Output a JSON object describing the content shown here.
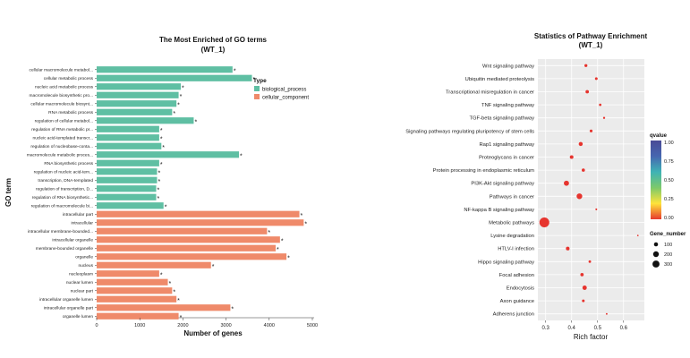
{
  "colors": {
    "biological_process": "#5fbfa3",
    "cellular_component": "#ef8a6a",
    "dot": "#e6342e",
    "panel_bg": "#ebebeb",
    "grid": "#ffffff",
    "qvalue_gradient": [
      "#e63a2e",
      "#ffe33a",
      "#7dc96a",
      "#3fb3b5",
      "#4666b0",
      "#4a4a96"
    ]
  },
  "chart_data": [
    {
      "type": "bar",
      "orientation": "horizontal",
      "title": "The Most Enriched of GO terms",
      "subtitle": "(WT_1)",
      "xlabel": "Number of genes",
      "ylabel": "GO term",
      "xlim": [
        0,
        5000
      ],
      "xticks": [
        "0",
        "1000",
        "2000",
        "3000",
        "4000",
        "5000"
      ],
      "legend": {
        "title": "Type",
        "position": "right",
        "entries": [
          {
            "label": "biological_process",
            "color_key": "biological_process"
          },
          {
            "label": "cellular_component",
            "color_key": "cellular_component"
          }
        ]
      },
      "star": "*",
      "bars": [
        {
          "label": "cellular macromolecule metabol...",
          "value": 3150,
          "type": "biological_process"
        },
        {
          "label": "cellular metabolic process",
          "value": 3600,
          "type": "biological_process"
        },
        {
          "label": "nucleic acid metabolic process",
          "value": 1950,
          "type": "biological_process"
        },
        {
          "label": "macromolecule biosynthetic pro...",
          "value": 1900,
          "type": "biological_process"
        },
        {
          "label": "cellular macromolecule biosynt...",
          "value": 1850,
          "type": "biological_process"
        },
        {
          "label": "RNA metabolic process",
          "value": 1750,
          "type": "biological_process"
        },
        {
          "label": "regulation of cellular metabol...",
          "value": 2250,
          "type": "biological_process"
        },
        {
          "label": "regulation of RNA metabolic pr...",
          "value": 1450,
          "type": "biological_process"
        },
        {
          "label": "nucleic acid-templated transcr...",
          "value": 1450,
          "type": "biological_process"
        },
        {
          "label": "regulation of nucleobase-conta...",
          "value": 1500,
          "type": "biological_process"
        },
        {
          "label": "macromolecule metabolic proces...",
          "value": 3300,
          "type": "biological_process"
        },
        {
          "label": "RNA biosynthetic process",
          "value": 1450,
          "type": "biological_process"
        },
        {
          "label": "regulation of nucleic acid-tem...",
          "value": 1400,
          "type": "biological_process"
        },
        {
          "label": "transcription, DNA-templated",
          "value": 1400,
          "type": "biological_process"
        },
        {
          "label": "regulation of transcription, D...",
          "value": 1380,
          "type": "biological_process"
        },
        {
          "label": "regulation of RNA biosynthetic...",
          "value": 1380,
          "type": "biological_process"
        },
        {
          "label": "regulation of macromolecule bi...",
          "value": 1550,
          "type": "biological_process"
        },
        {
          "label": "intracellular part",
          "value": 4700,
          "type": "cellular_component"
        },
        {
          "label": "intracellular",
          "value": 4800,
          "type": "cellular_component"
        },
        {
          "label": "intracellular membrane-bounded...",
          "value": 3950,
          "type": "cellular_component"
        },
        {
          "label": "intracellular organelle",
          "value": 4250,
          "type": "cellular_component"
        },
        {
          "label": "membrane-bounded organelle",
          "value": 4150,
          "type": "cellular_component"
        },
        {
          "label": "organelle",
          "value": 4400,
          "type": "cellular_component"
        },
        {
          "label": "nucleus",
          "value": 2650,
          "type": "cellular_component"
        },
        {
          "label": "nucleoplasm",
          "value": 1450,
          "type": "cellular_component"
        },
        {
          "label": "nuclear lumen",
          "value": 1650,
          "type": "cellular_component"
        },
        {
          "label": "nuclear part",
          "value": 1750,
          "type": "cellular_component"
        },
        {
          "label": "intracellular organelle lumen",
          "value": 1850,
          "type": "cellular_component"
        },
        {
          "label": "intracellular organelle part",
          "value": 3100,
          "type": "cellular_component"
        },
        {
          "label": "organelle lumen",
          "value": 1900,
          "type": "cellular_component"
        }
      ]
    },
    {
      "type": "scatter",
      "title": "Statistics of Pathway Enrichment",
      "subtitle": "(WT_1)",
      "xlabel": "Rich factor",
      "ylabel": "",
      "xlim": [
        0.27,
        0.68
      ],
      "xticks": [
        0.3,
        0.4,
        0.5,
        0.6
      ],
      "xtick_labels": [
        "0.3",
        "0.4",
        "0.5",
        "0.6"
      ],
      "grid": true,
      "legend": {
        "position": "right",
        "qvalue_title": "qvalue",
        "qvalue_range": [
          0,
          1
        ],
        "qvalue_ticks": [
          "1.00",
          "0.75",
          "0.50",
          "0.25",
          "0.00"
        ],
        "gene_number_title": "Gene_number",
        "gene_number_entries": [
          {
            "label": "100",
            "value": 100
          },
          {
            "label": "200",
            "value": 200
          },
          {
            "label": "300",
            "value": 300
          }
        ]
      },
      "points": [
        {
          "pathway": "Wnt signaling pathway",
          "rich_factor": 0.455,
          "gene_number": 30,
          "qvalue": 0.02
        },
        {
          "pathway": "Ubiquitin mediated proteolysis",
          "rich_factor": 0.495,
          "gene_number": 25,
          "qvalue": 0.02
        },
        {
          "pathway": "Transcriptional misregulation in cancer",
          "rich_factor": 0.46,
          "gene_number": 40,
          "qvalue": 0.02
        },
        {
          "pathway": "TNF signaling pathway",
          "rich_factor": 0.51,
          "gene_number": 20,
          "qvalue": 0.02
        },
        {
          "pathway": "TGF-beta signaling pathway",
          "rich_factor": 0.525,
          "gene_number": 15,
          "qvalue": 0.02
        },
        {
          "pathway": "Signaling pathways regulating pluripotency of stem cells",
          "rich_factor": 0.475,
          "gene_number": 28,
          "qvalue": 0.02
        },
        {
          "pathway": "Rap1 signaling pathway",
          "rich_factor": 0.435,
          "gene_number": 55,
          "qvalue": 0.02
        },
        {
          "pathway": "Proteoglycans in cancer",
          "rich_factor": 0.4,
          "gene_number": 45,
          "qvalue": 0.02
        },
        {
          "pathway": "Protein processing in endoplasmic reticulum",
          "rich_factor": 0.445,
          "gene_number": 35,
          "qvalue": 0.02
        },
        {
          "pathway": "PI3K-Akt signaling pathway",
          "rich_factor": 0.38,
          "gene_number": 90,
          "qvalue": 0.02
        },
        {
          "pathway": "Pathways in cancer",
          "rich_factor": 0.43,
          "gene_number": 110,
          "qvalue": 0.02
        },
        {
          "pathway": "NF-kappa B signaling pathway",
          "rich_factor": 0.495,
          "gene_number": 12,
          "qvalue": 0.02
        },
        {
          "pathway": "Metabolic pathways",
          "rich_factor": 0.295,
          "gene_number": 330,
          "qvalue": 0.0
        },
        {
          "pathway": "Lysine degradation",
          "rich_factor": 0.655,
          "gene_number": 8,
          "qvalue": 0.02
        },
        {
          "pathway": "HTLV-I infection",
          "rich_factor": 0.385,
          "gene_number": 45,
          "qvalue": 0.02
        },
        {
          "pathway": "Hippo signaling pathway",
          "rich_factor": 0.47,
          "gene_number": 22,
          "qvalue": 0.02
        },
        {
          "pathway": "Focal adhesion",
          "rich_factor": 0.44,
          "gene_number": 38,
          "qvalue": 0.02
        },
        {
          "pathway": "Endocytosis",
          "rich_factor": 0.45,
          "gene_number": 65,
          "qvalue": 0.02
        },
        {
          "pathway": "Axon guidance",
          "rich_factor": 0.445,
          "gene_number": 25,
          "qvalue": 0.02
        },
        {
          "pathway": "Adherens junction",
          "rich_factor": 0.535,
          "gene_number": 10,
          "qvalue": 0.02
        }
      ]
    }
  ]
}
